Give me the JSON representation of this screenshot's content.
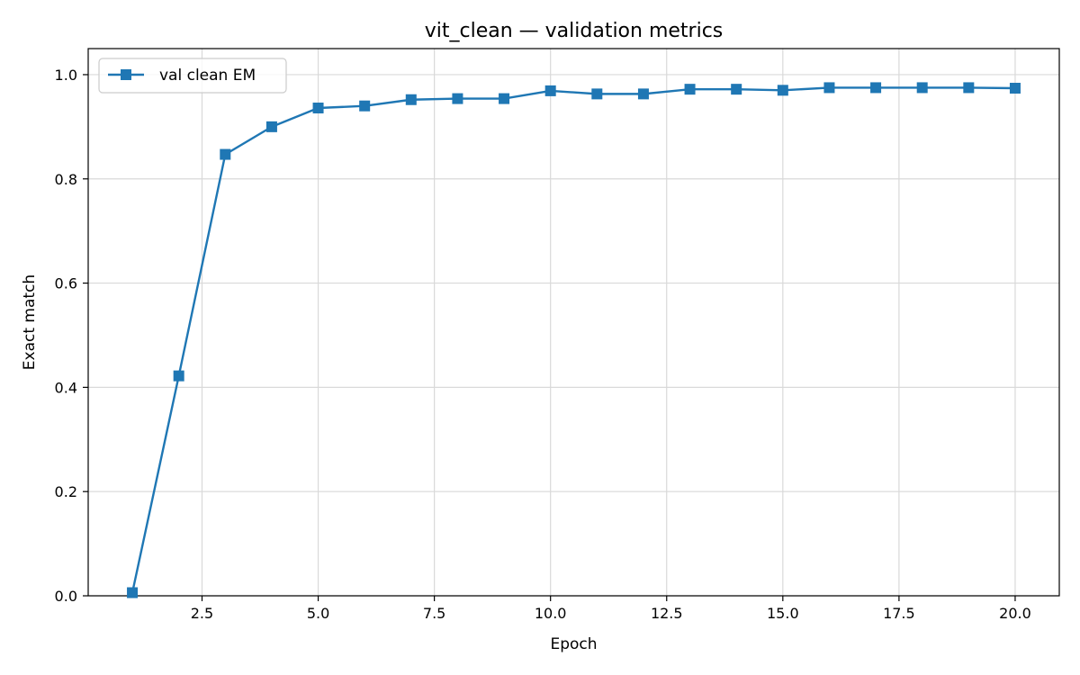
{
  "chart_data": {
    "type": "line",
    "title": "vit_clean — validation metrics",
    "xlabel": "Epoch",
    "ylabel": "Exact match",
    "xlim": [
      0.05,
      20.95
    ],
    "ylim": [
      0.0,
      1.05
    ],
    "x_ticks": [
      2.5,
      5.0,
      7.5,
      10.0,
      12.5,
      15.0,
      17.5,
      20.0
    ],
    "x_tick_labels": [
      "2.5",
      "5.0",
      "7.5",
      "10.0",
      "12.5",
      "15.0",
      "17.5",
      "20.0"
    ],
    "y_ticks": [
      0.0,
      0.2,
      0.4,
      0.6,
      0.8,
      1.0
    ],
    "y_tick_labels": [
      "0.0",
      "0.2",
      "0.4",
      "0.6",
      "0.8",
      "1.0"
    ],
    "grid": true,
    "legend_position": "top-left",
    "series": [
      {
        "name": "val clean EM",
        "color": "#1f77b4",
        "marker": "square",
        "x": [
          1,
          2,
          3,
          4,
          5,
          6,
          7,
          8,
          9,
          10,
          11,
          12,
          13,
          14,
          15,
          16,
          17,
          18,
          19,
          20
        ],
        "y": [
          0.006,
          0.422,
          0.847,
          0.9,
          0.936,
          0.94,
          0.952,
          0.954,
          0.954,
          0.969,
          0.963,
          0.963,
          0.972,
          0.972,
          0.97,
          0.975,
          0.975,
          0.975,
          0.975,
          0.974
        ]
      }
    ]
  }
}
